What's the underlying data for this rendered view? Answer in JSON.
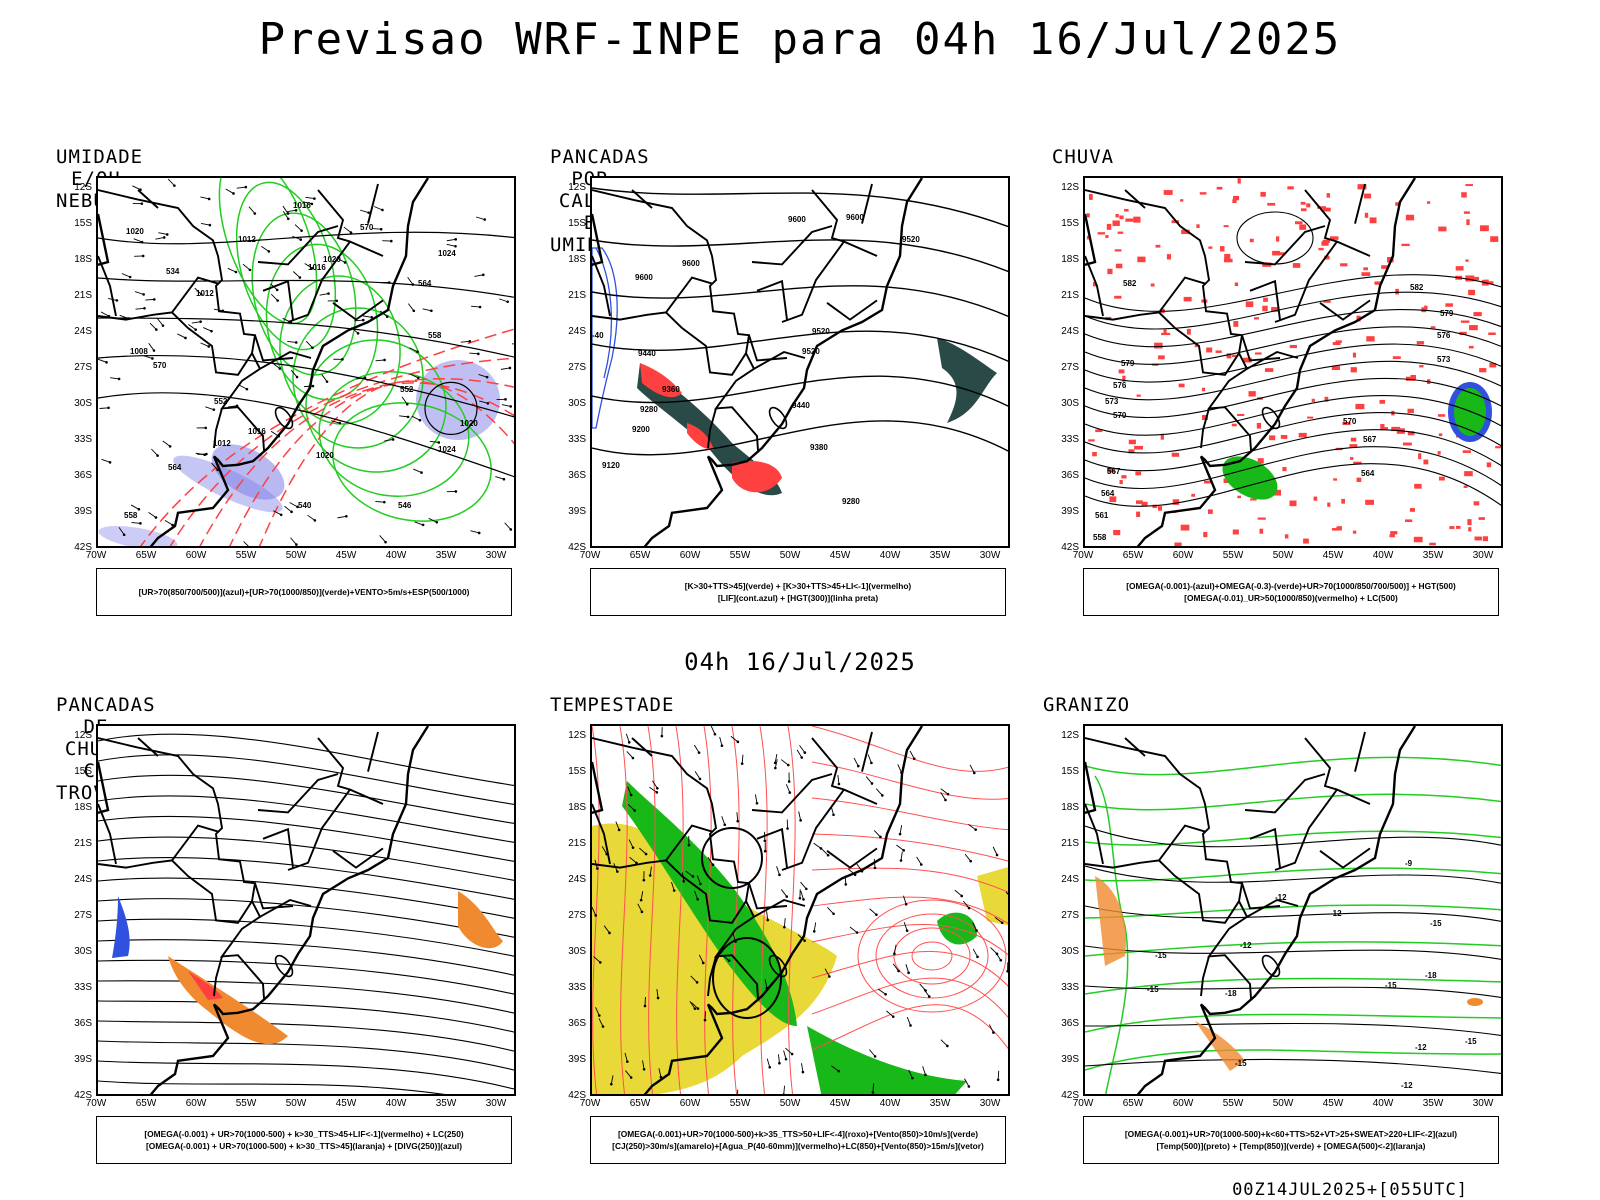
{
  "header": {
    "title": "Previsao WRF-INPE  para 04h 16/Jul/2025",
    "mid_title": "04h 16/Jul/2025",
    "footer": "00Z14JUL2025+[055UTC]"
  },
  "axes": {
    "lat_labels": [
      "12S",
      "15S",
      "18S",
      "21S",
      "24S",
      "27S",
      "30S",
      "33S",
      "36S",
      "39S",
      "42S"
    ],
    "lon_labels": [
      "70W",
      "65W",
      "60W",
      "55W",
      "50W",
      "45W",
      "40W",
      "35W",
      "30W"
    ]
  },
  "panels": [
    {
      "title": "UMIDADE E/OU NEBULOSIDADE",
      "legend": [
        "[UR>70(850/700/500)](azul)+[UR>70(1000/850)](verde)+VENTO>5m/s+ESP(500/1000)"
      ],
      "contour_labels": [
        "1016",
        "1012",
        "1020",
        "1016",
        "1020",
        "1012",
        "1008",
        "1024",
        "1016",
        "1012",
        "1020",
        "1024",
        "1020",
        "570",
        "564",
        "558",
        "552",
        "570",
        "564",
        "558",
        "546",
        "540",
        "534",
        "552"
      ]
    },
    {
      "title": "PANCADAS POR CALOR E UMIDADE",
      "legend": [
        "[K>30+TTS>45](verde)  +  [K>30+TTS>45+LI<-1](vermelho)",
        "[LIF](cont.azul)  +  [HGT(300)](linha preta)"
      ],
      "contour_labels": [
        "9600",
        "9600",
        "9600",
        "9520",
        "9600",
        "9520",
        "9520",
        "9440",
        "9360",
        "9280",
        "9200",
        "9440",
        "9380",
        "9120",
        "9280",
        "-40"
      ]
    },
    {
      "title": "CHUVA",
      "legend": [
        "[OMEGA(-0.001)-(azul)+OMEGA(-0.3)-(verde)+UR>70(1000/850/700/500)]  +  HGT(500)",
        "[OMEGA(-0.01)_UR>50(1000/850)(vermelho)  +  LC(500)"
      ],
      "contour_labels": [
        "582",
        "579",
        "576",
        "573",
        "570",
        "567",
        "564",
        "561",
        "558",
        "582",
        "579",
        "576",
        "573",
        "570",
        "567",
        "564"
      ]
    },
    {
      "title": "PANCADAS DE CHUVA C/ TROVOADAS",
      "legend": [
        "[OMEGA(-0.001)  +  UR>70(1000-500)  +  k>30_TTS>45+LIF<-1](vermelho)  +  LC(250)",
        "[OMEGA(-0.001)  +  UR>70(1000-500)  +  k>30_TTS>45](laranja)  +  [DIVG(250)](azul)"
      ],
      "contour_labels": []
    },
    {
      "title": "TEMPESTADE",
      "legend": [
        "[OMEGA(-0.001)+UR>70(1000-500)+k>35_TTS>50+LIF<-4](roxo)+[Vento(850)>10m/s](verde)",
        "[CJ(250)>30m/s](amarelo)+[Agua_P(40-60mm)](vermelho)+LC(850)+[Vento(850)>15m/s](vetor)"
      ],
      "contour_labels": []
    },
    {
      "title": "GRANIZO",
      "legend": [
        "[OMEGA(-0.001)+UR>70(1000-500)+k<60+TTS>52+VT>25+SWEAT>220+LIF<-2](azul)",
        "[Temp(500)](preto)  +  [Temp(850)](verde)  +  [OMEGA(500)<-2](laranja)"
      ],
      "contour_labels": [
        "-9",
        "-12",
        "-15",
        "-12",
        "-15",
        "-12",
        "-15",
        "-12",
        "-15",
        "-18",
        "-15",
        "-12",
        "-15",
        "-18"
      ]
    }
  ],
  "colors": {
    "blue_shade": "#8080e8",
    "green_contour": "#22cc22",
    "red_contour": "#ff4040",
    "dark_teal": "#2a4a48",
    "orange": "#f08a30",
    "yellow": "#e8d838",
    "bright_green": "#18b818",
    "streamline_red": "#ff5050"
  }
}
